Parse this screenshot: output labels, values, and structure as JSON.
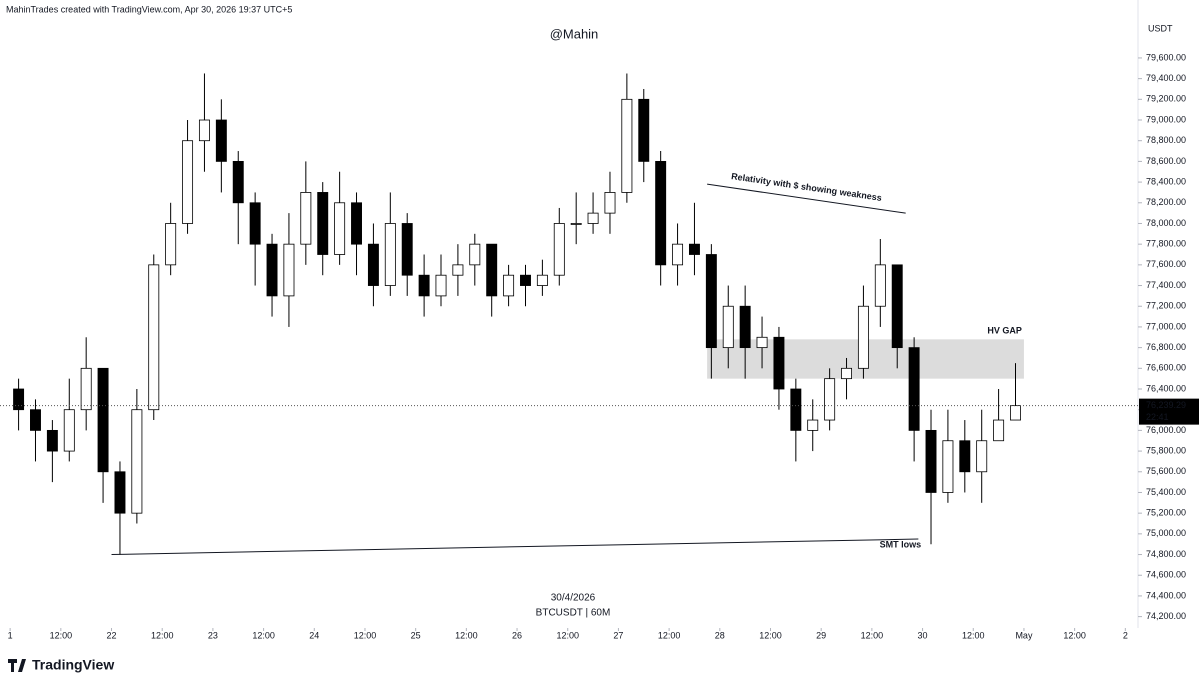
{
  "header": "MahinTrades created with TradingView.com, Apr 30, 2026 19:37 UTC+5",
  "brand": "TradingView",
  "chart_data": {
    "type": "candlestick",
    "title": "@Mahin",
    "date_label": "30/4/2026",
    "subtitle": "BTCUSDT | 60M",
    "y_axis_label": "USDT",
    "xlim": [
      -2.4,
      267
    ],
    "ylim": [
      74090,
      80160
    ],
    "xticks": [
      {
        "value": 0,
        "label": "1"
      },
      {
        "value": 12,
        "label": "12:00"
      },
      {
        "value": 24,
        "label": "22"
      },
      {
        "value": 36,
        "label": "12:00"
      },
      {
        "value": 48,
        "label": "23"
      },
      {
        "value": 60,
        "label": "12:00"
      },
      {
        "value": 72,
        "label": "24"
      },
      {
        "value": 84,
        "label": "12:00"
      },
      {
        "value": 96,
        "label": "25"
      },
      {
        "value": 108,
        "label": "12:00"
      },
      {
        "value": 120,
        "label": "26"
      },
      {
        "value": 132,
        "label": "12:00"
      },
      {
        "value": 144,
        "label": "27"
      },
      {
        "value": 156,
        "label": "12:00"
      },
      {
        "value": 168,
        "label": "28"
      },
      {
        "value": 180,
        "label": "12:00"
      },
      {
        "value": 192,
        "label": "29"
      },
      {
        "value": 204,
        "label": "12:00"
      },
      {
        "value": 216,
        "label": "30"
      },
      {
        "value": 228,
        "label": "12:00"
      },
      {
        "value": 240,
        "label": "May"
      },
      {
        "value": 252,
        "label": "12:00"
      },
      {
        "value": 264,
        "label": "2"
      }
    ],
    "yticks": [
      {
        "value": 74200,
        "label": "74,200.00"
      },
      {
        "value": 74400,
        "label": "74,400.00"
      },
      {
        "value": 74600,
        "label": "74,600.00"
      },
      {
        "value": 74800,
        "label": "74,800.00"
      },
      {
        "value": 75000,
        "label": "75,000.00"
      },
      {
        "value": 75200,
        "label": "75,200.00"
      },
      {
        "value": 75400,
        "label": "75,400.00"
      },
      {
        "value": 75600,
        "label": "75,600.00"
      },
      {
        "value": 75800,
        "label": "75,800.00"
      },
      {
        "value": 76000,
        "label": "76,000.00"
      },
      {
        "value": 76200,
        "label": "76,200.00"
      },
      {
        "value": 76400,
        "label": "76,400.00"
      },
      {
        "value": 76600,
        "label": "76,600.00"
      },
      {
        "value": 76800,
        "label": "76,800.00"
      },
      {
        "value": 77000,
        "label": "77,000.00"
      },
      {
        "value": 77200,
        "label": "77,200.00"
      },
      {
        "value": 77400,
        "label": "77,400.00"
      },
      {
        "value": 77600,
        "label": "77,600.00"
      },
      {
        "value": 77800,
        "label": "77,800.00"
      },
      {
        "value": 78000,
        "label": "78,000.00"
      },
      {
        "value": 78200,
        "label": "78,200.00"
      },
      {
        "value": 78400,
        "label": "78,400.00"
      },
      {
        "value": 78600,
        "label": "78,600.00"
      },
      {
        "value": 78800,
        "label": "78,800.00"
      },
      {
        "value": 79000,
        "label": "79,000.00"
      },
      {
        "value": 79200,
        "label": "79,200.00"
      },
      {
        "value": 79400,
        "label": "79,400.00"
      },
      {
        "value": 79600,
        "label": "79,600.00"
      }
    ],
    "candle_hours": 4,
    "x": [
      0,
      4,
      8,
      12,
      16,
      20,
      24,
      28,
      32,
      36,
      40,
      44,
      48,
      52,
      56,
      60,
      64,
      68,
      72,
      76,
      80,
      84,
      88,
      92,
      96,
      100,
      104,
      108,
      112,
      116,
      120,
      124,
      128,
      132,
      136,
      140,
      144,
      148,
      152,
      156,
      160,
      164,
      168,
      172,
      176,
      180,
      184,
      188,
      192,
      196,
      200,
      204,
      208,
      212,
      216,
      220,
      224,
      228,
      232,
      236
    ],
    "open": [
      76400,
      76200,
      76000,
      75800,
      76200,
      76600,
      75600,
      75200,
      76200,
      77600,
      78000,
      78800,
      79000,
      78600,
      78200,
      77800,
      77300,
      77800,
      78300,
      77700,
      78200,
      77800,
      77400,
      78000,
      77500,
      77300,
      77500,
      77600,
      77800,
      77300,
      77500,
      77400,
      77500,
      78000,
      78000,
      78100,
      78300,
      79200,
      78600,
      77600,
      77800,
      77700,
      76800,
      77200,
      76800,
      76900,
      76400,
      76000,
      76100,
      76500,
      76600,
      77200,
      77600,
      76800,
      76000,
      75400,
      75900,
      75600,
      75900,
      76100
    ],
    "high": [
      76500,
      76300,
      76100,
      76500,
      76900,
      76600,
      75700,
      76400,
      77700,
      78200,
      79000,
      79450,
      79200,
      78700,
      78300,
      77900,
      78100,
      78600,
      78400,
      78500,
      78300,
      78000,
      78300,
      78100,
      77700,
      77700,
      77800,
      77900,
      77800,
      77600,
      77600,
      77650,
      78150,
      78300,
      78300,
      78500,
      79450,
      79300,
      78700,
      78000,
      78200,
      77800,
      77400,
      77400,
      77100,
      77000,
      76500,
      76300,
      76600,
      76700,
      77400,
      77850,
      77600,
      76900,
      76200,
      76200,
      76100,
      76200,
      76400,
      76650
    ],
    "low": [
      76000,
      75700,
      75500,
      75700,
      76000,
      75300,
      74800,
      75100,
      76100,
      77500,
      77900,
      78500,
      78300,
      77800,
      77400,
      77100,
      77000,
      77600,
      77500,
      77600,
      77500,
      77200,
      77300,
      77300,
      77100,
      77200,
      77300,
      77400,
      77100,
      77200,
      77200,
      77300,
      77400,
      77800,
      77900,
      77900,
      78200,
      78400,
      77400,
      77400,
      77500,
      76500,
      76600,
      76500,
      76600,
      76200,
      75700,
      75800,
      76000,
      76300,
      76500,
      77000,
      76600,
      75700,
      74900,
      75300,
      75400,
      75300,
      75900,
      76100
    ],
    "close": [
      76200,
      76000,
      75800,
      76200,
      76600,
      75600,
      75200,
      76200,
      77600,
      78000,
      78800,
      79000,
      78600,
      78200,
      77800,
      77300,
      77800,
      78300,
      77700,
      78200,
      77800,
      77400,
      78000,
      77500,
      77300,
      77500,
      77600,
      77800,
      77300,
      77500,
      77400,
      77500,
      78000,
      78000,
      78100,
      78300,
      79200,
      78600,
      77600,
      77800,
      77700,
      76800,
      77200,
      76800,
      76900,
      76400,
      76000,
      76100,
      76500,
      76600,
      77200,
      77600,
      76800,
      76000,
      75400,
      75900,
      75600,
      75900,
      76100,
      76239.29
    ],
    "last_price": 76239.29,
    "last_price_label": "76,239.29",
    "countdown": "22:41",
    "zone": {
      "label": "HV GAP",
      "x": [
        165,
        240
      ],
      "y": [
        76500,
        76880
      ]
    },
    "trendlines": [
      {
        "label": "Relativity with $ showing weakness",
        "x": [
          165,
          212
        ],
        "y": [
          78380,
          78100
        ]
      },
      {
        "label": "SMT lows",
        "x": [
          24,
          215
        ],
        "y": [
          74800,
          74950
        ]
      }
    ]
  }
}
